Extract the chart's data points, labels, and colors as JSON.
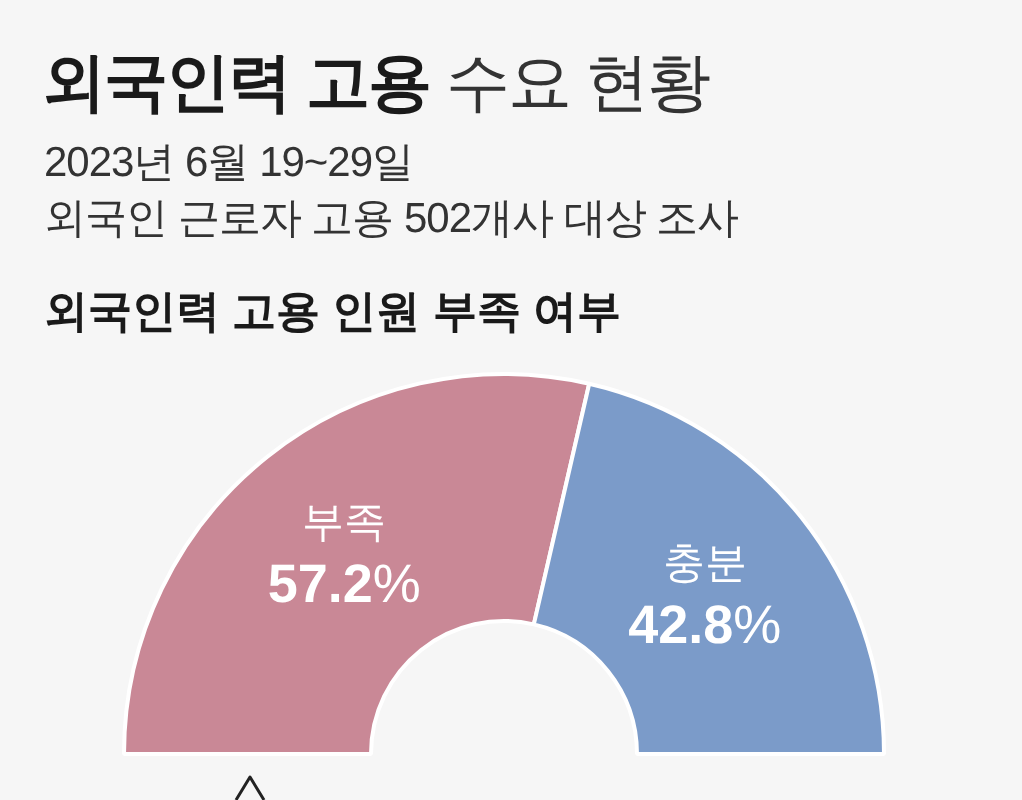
{
  "chart_data": {
    "type": "donut",
    "title": "외국인력 고용 수요 현황",
    "subtitle": "2023년 6월 19~29일\n외국인 근로자 고용 502개사 대상 조사",
    "annotations": [
      "외국인력 고용 인원 부족 여부"
    ],
    "categories": [
      "부족",
      "충분"
    ],
    "values": [
      57.2,
      42.8
    ],
    "colors": [
      "#c98896",
      "#7b9bc9"
    ],
    "value_labels": [
      "57.2%",
      "42.8%"
    ]
  }
}
